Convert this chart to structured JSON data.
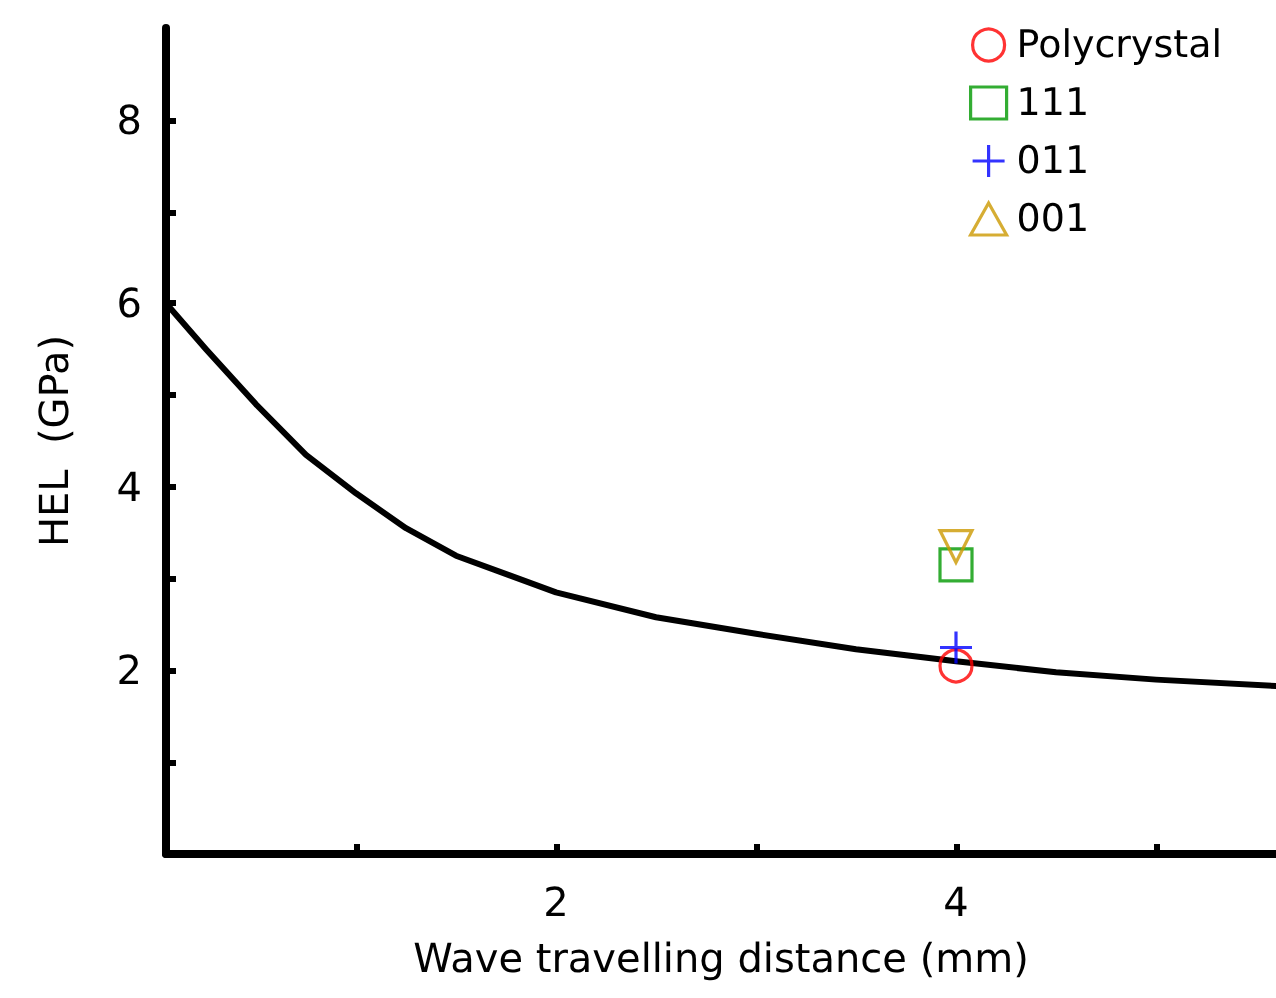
{
  "chart_data": {
    "type": "scatter",
    "xlabel": "Wave travelling distance (mm)",
    "ylabel": "HEL  (GPa)",
    "xlim": [
      0.05,
      5.6
    ],
    "xticks": [
      {
        "value": 1,
        "label": null
      },
      2,
      {
        "value": 3,
        "label": null
      },
      4,
      {
        "value": 5,
        "label": null
      }
    ],
    "ylim": [
      0,
      9
    ],
    "yticks": [
      {
        "value": 1,
        "label": null
      },
      2,
      {
        "value": 3,
        "label": null
      },
      4,
      {
        "value": 5,
        "label": null
      },
      6,
      {
        "value": 7,
        "label": null
      },
      8
    ],
    "grid": false,
    "legend": "top right",
    "series": [
      {
        "type": "line",
        "color": "#000000",
        "marker": "none",
        "line_style": "solid",
        "x": [
          0.05,
          0.25,
          0.5,
          0.75,
          1,
          1.25,
          1.5,
          2,
          2.5,
          3,
          3.5,
          4,
          4.5,
          5,
          5.6
        ],
        "values": [
          6.0,
          5.5,
          4.9,
          4.35,
          3.93,
          3.55,
          3.25,
          2.85,
          2.58,
          2.4,
          2.23,
          2.1,
          1.98,
          1.9,
          1.83
        ]
      },
      {
        "name": "Polycrystal",
        "color": "#ff0000",
        "marker": "circle",
        "x": [
          4
        ],
        "values": [
          2.05
        ]
      },
      {
        "name": "111",
        "color": "#009900",
        "marker": "square",
        "x": [
          4
        ],
        "values": [
          3.15
        ]
      },
      {
        "name": "011",
        "color": "#0000ff",
        "marker": "cross",
        "x": [
          4
        ],
        "values": [
          2.25
        ]
      },
      {
        "name": "001",
        "color": "#cc9900",
        "marker": "triangle",
        "x": [
          4
        ],
        "values": [
          3.35
        ]
      }
    ]
  }
}
